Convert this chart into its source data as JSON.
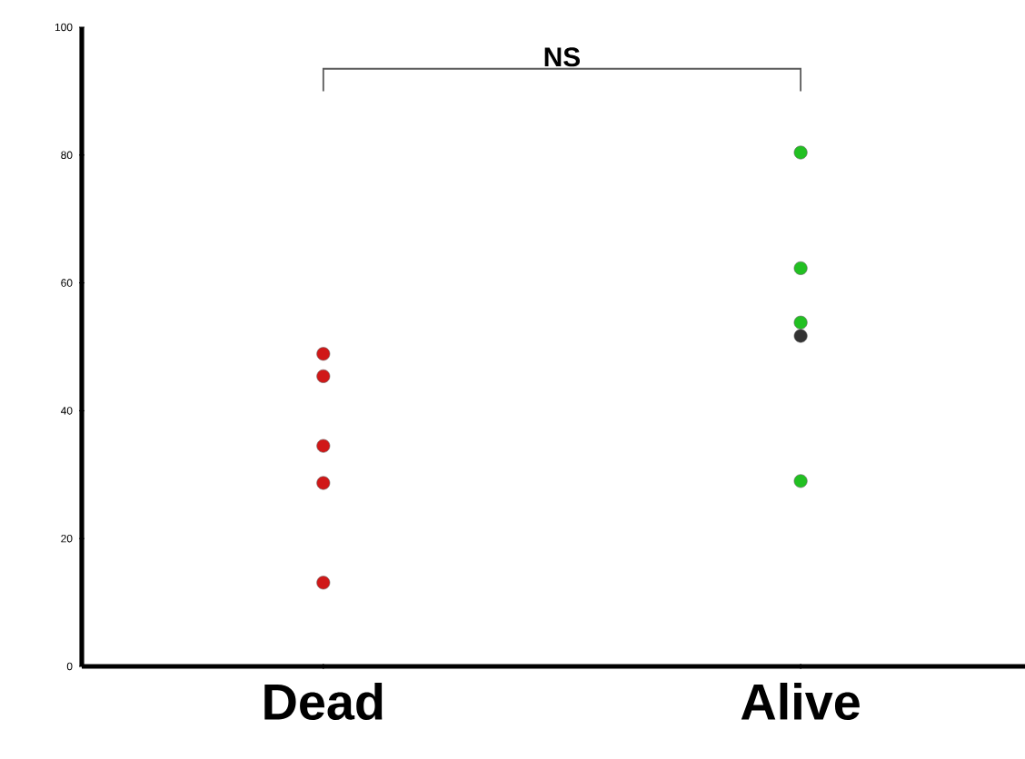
{
  "chart_data": {
    "type": "scatter",
    "categories": [
      "Dead",
      "Alive"
    ],
    "series": [
      {
        "color": "#d01818",
        "x": [
          "Dead",
          "Dead",
          "Dead",
          "Dead",
          "Dead"
        ],
        "values": [
          48.9,
          45.4,
          34.5,
          28.7,
          13.1
        ]
      },
      {
        "colors": [
          "#22c022",
          "#22c022",
          "#22c022",
          "#333333",
          "#22c022"
        ],
        "x": [
          "Alive",
          "Alive",
          "Alive",
          "Alive",
          "Alive"
        ],
        "values": [
          80.4,
          62.3,
          53.8,
          51.7,
          29.0
        ]
      }
    ],
    "ylim": [
      0,
      100
    ],
    "yticks": [
      0,
      20,
      40,
      60,
      80,
      100
    ],
    "grid": false,
    "annotations": [
      "NS"
    ]
  }
}
